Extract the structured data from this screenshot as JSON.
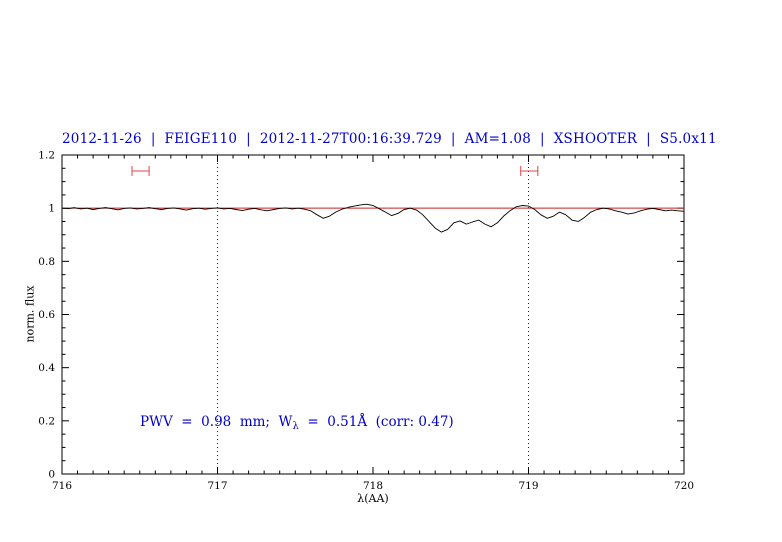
{
  "colors": {
    "title": "#0000cc",
    "annotation": "#0000cc",
    "spectrum": "#000000",
    "continuum": "#cc2222",
    "marker": "#dd4444",
    "frame": "#000000",
    "dotted_line": "#222222"
  },
  "annotation": {
    "part1": "PWV  =  0.98  mm;  W",
    "sub": "λ",
    "part2": "  =  0.51Å  (corr: 0.47)"
  },
  "chart_data": {
    "type": "line",
    "title": "2012-11-26  |  FEIGE110  |  2012-11-27T00:16:39.729  |  AM=1.08  |  XSHOOTER  |  S5.0x11",
    "xlabel": "λ(AA)",
    "ylabel": "norm. flux",
    "xlim": [
      716,
      720
    ],
    "ylim": [
      0,
      1.2
    ],
    "grid": false,
    "legend": "none",
    "x_ticks": [
      {
        "v": 716,
        "label": "716"
      },
      {
        "v": 717,
        "label": "717"
      },
      {
        "v": 718,
        "label": "718"
      },
      {
        "v": 719,
        "label": "719"
      },
      {
        "v": 720,
        "label": "720"
      }
    ],
    "y_ticks": [
      {
        "v": 0,
        "label": "0"
      },
      {
        "v": 0.2,
        "label": "0.2"
      },
      {
        "v": 0.4,
        "label": "0.4"
      },
      {
        "v": 0.6,
        "label": "0.6"
      },
      {
        "v": 0.8,
        "label": "0.8"
      },
      {
        "v": 1,
        "label": "1"
      },
      {
        "v": 1.2,
        "label": "1.2"
      }
    ],
    "x_minor_step": 0.1,
    "y_minor_step": 0.05,
    "dotted_vlines": [
      717,
      719
    ],
    "continuum": {
      "y": 1.0
    },
    "interval_markers": [
      {
        "x1": 716.45,
        "x2": 716.56,
        "y": 1.14
      },
      {
        "x1": 718.95,
        "x2": 719.06,
        "y": 1.14
      }
    ],
    "series": [
      {
        "name": "normalized spectrum",
        "x_start": 716.0,
        "x_step": 0.04,
        "y": [
          1.0,
          0.998,
          1.002,
          0.997,
          1.0,
          0.995,
          0.999,
          1.002,
          0.998,
          0.994,
          0.999,
          1.001,
          0.997,
          0.999,
          1.002,
          0.998,
          0.995,
          0.999,
          1.001,
          0.997,
          0.993,
          0.998,
          1.0,
          0.996,
          0.999,
          1.001,
          0.997,
          0.999,
          0.995,
          0.991,
          0.996,
          0.999,
          0.994,
          0.99,
          0.995,
          0.999,
          1.001,
          0.997,
          1.0,
          0.996,
          0.99,
          0.975,
          0.962,
          0.97,
          0.985,
          0.996,
          1.003,
          1.008,
          1.012,
          1.015,
          1.01,
          0.998,
          0.985,
          0.972,
          0.98,
          0.995,
          1.0,
          0.993,
          0.975,
          0.95,
          0.925,
          0.91,
          0.92,
          0.945,
          0.952,
          0.94,
          0.948,
          0.955,
          0.94,
          0.93,
          0.945,
          0.97,
          0.99,
          1.005,
          1.01,
          1.008,
          0.995,
          0.975,
          0.962,
          0.97,
          0.985,
          0.975,
          0.955,
          0.95,
          0.965,
          0.985,
          0.995,
          1.0,
          0.997,
          0.99,
          0.985,
          0.978,
          0.982,
          0.99,
          0.996,
          0.999,
          0.995,
          0.99,
          0.993,
          0.99,
          0.988
        ]
      }
    ]
  }
}
